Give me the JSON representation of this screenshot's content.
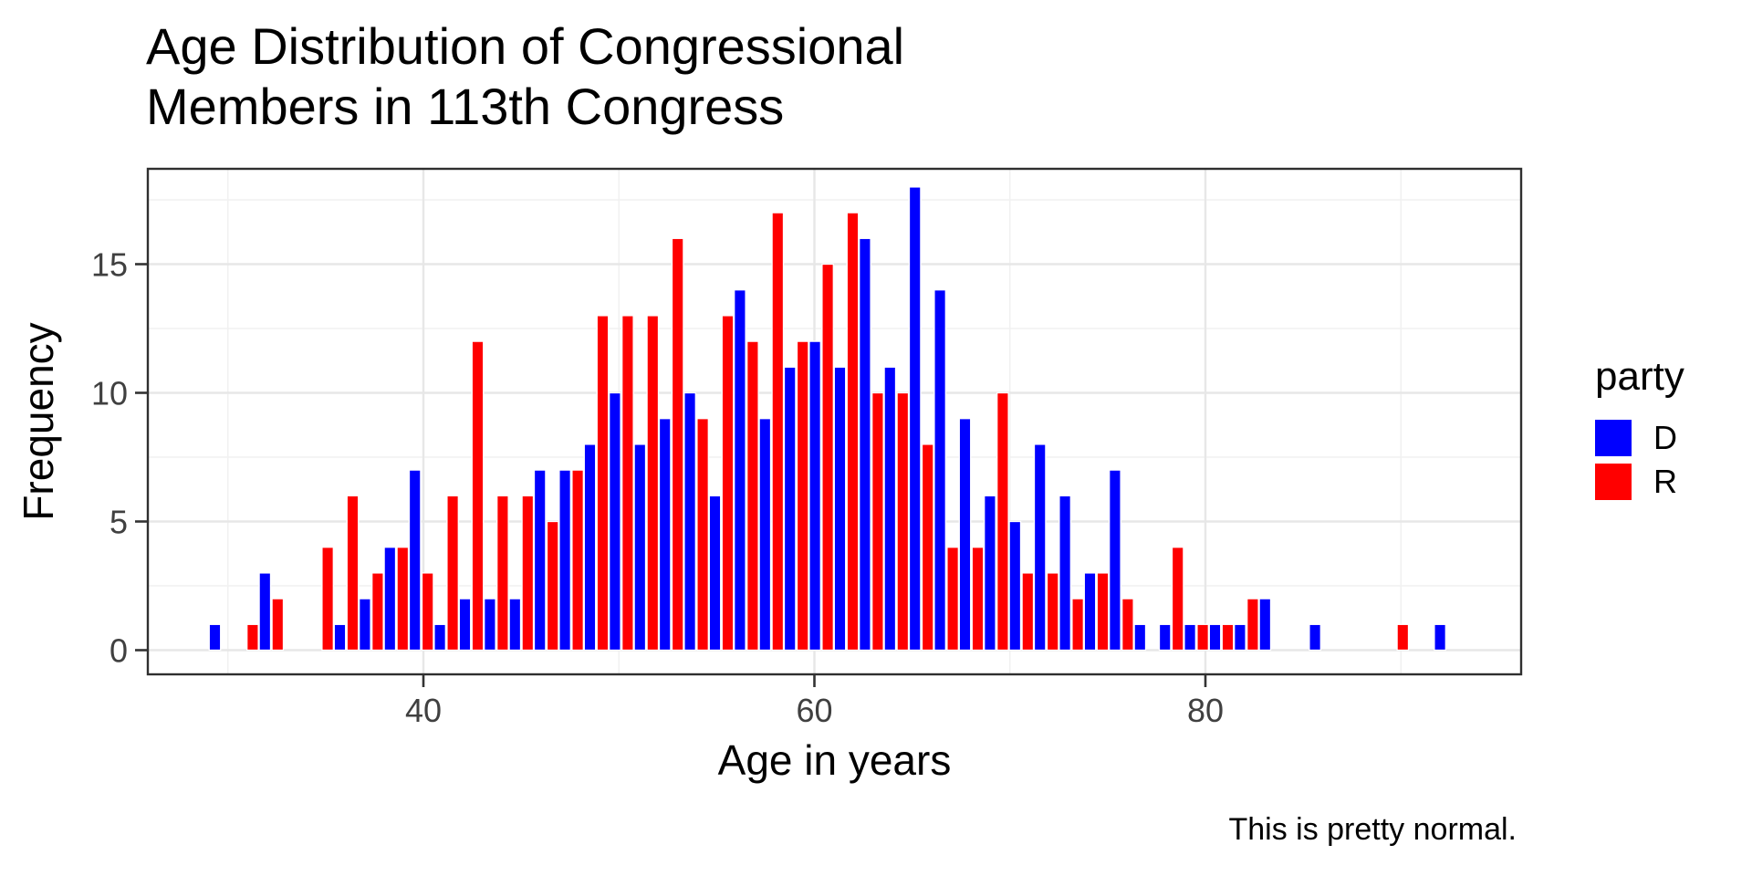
{
  "title": {
    "line1": "Age Distribution of Congressional",
    "line2": "Members in 113th Congress"
  },
  "axes": {
    "x_label": "Age in years",
    "y_label": "Frequency",
    "x_ticks": [
      40,
      60,
      80
    ],
    "y_ticks": [
      0,
      5,
      10,
      15
    ]
  },
  "legend": {
    "title": "party",
    "items": [
      {
        "label": "D",
        "color": "#0000FF"
      },
      {
        "label": "R",
        "color": "#FF0000"
      }
    ]
  },
  "caption": "This is pretty normal.",
  "chart_data": {
    "type": "bar",
    "subtype": "dodged-histogram",
    "title": "Age Distribution of Congressional Members in 113th Congress",
    "xlabel": "Age in years",
    "ylabel": "Frequency",
    "xlim": [
      26,
      96
    ],
    "ylim": [
      0,
      18
    ],
    "x_major_ticks": [
      40,
      60,
      80
    ],
    "x_minor_ticks": [
      30,
      50,
      70,
      90
    ],
    "y_major_ticks": [
      0,
      5,
      10,
      15
    ],
    "y_minor_ticks": [
      2.5,
      7.5,
      12.5,
      17.5
    ],
    "grid": true,
    "legend_position": "right",
    "bin_centers_age": [
      29.7,
      31.0,
      32.2,
      33.5,
      34.8,
      36.1,
      37.3,
      38.6,
      39.9,
      41.2,
      42.5,
      43.7,
      45.0,
      46.3,
      47.6,
      48.8,
      50.1,
      51.4,
      52.7,
      54.0,
      55.2,
      56.5,
      57.8,
      59.1,
      60.4,
      61.6,
      62.9,
      64.2,
      65.5,
      66.7,
      68.0,
      69.3,
      70.6,
      71.9,
      73.1,
      74.4,
      75.7,
      77.0,
      78.3,
      79.5,
      80.8,
      82.1,
      83.4,
      84.6,
      85.9,
      87.2,
      88.5,
      89.8,
      91.0,
      92.3
    ],
    "series": [
      {
        "name": "D",
        "color": "#0000FF",
        "values": [
          1,
          0,
          3,
          0,
          0,
          1,
          2,
          4,
          7,
          1,
          2,
          2,
          2,
          7,
          7,
          8,
          10,
          8,
          9,
          10,
          6,
          14,
          9,
          11,
          12,
          11,
          16,
          11,
          18,
          14,
          9,
          6,
          5,
          8,
          6,
          3,
          7,
          1,
          1,
          1,
          1,
          1,
          2,
          0,
          1,
          0,
          0,
          0,
          0,
          1
        ]
      },
      {
        "name": "R",
        "color": "#FF0000",
        "values": [
          0,
          1,
          2,
          0,
          4,
          6,
          3,
          4,
          3,
          6,
          12,
          6,
          6,
          5,
          7,
          13,
          13,
          13,
          16,
          9,
          13,
          12,
          17,
          12,
          15,
          17,
          10,
          10,
          8,
          4,
          4,
          10,
          3,
          3,
          2,
          3,
          2,
          0,
          4,
          1,
          1,
          2,
          0,
          0,
          0,
          0,
          0,
          1,
          0,
          0
        ]
      }
    ]
  }
}
